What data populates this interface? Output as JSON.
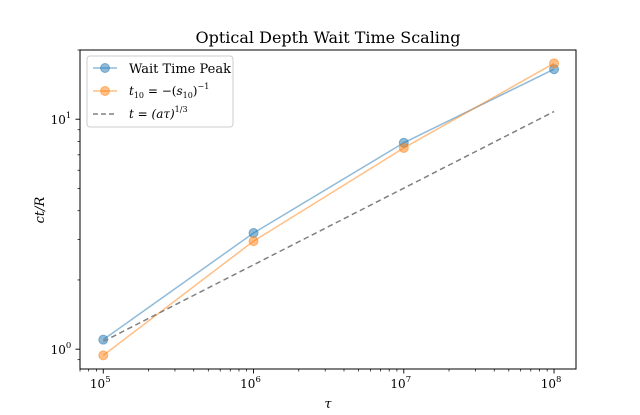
{
  "chart_data": {
    "type": "line",
    "title": "Optical Depth Wait Time Scaling",
    "xlabel": "τ",
    "ylabel": "ct/R",
    "xscale": "log",
    "yscale": "log",
    "xlim": [
      70000,
      140000000
    ],
    "ylim": [
      0.82,
      20
    ],
    "x_ticks": [
      {
        "base": "10",
        "exp": "5",
        "value": 100000
      },
      {
        "base": "10",
        "exp": "6",
        "value": 1000000
      },
      {
        "base": "10",
        "exp": "7",
        "value": 10000000
      },
      {
        "base": "10",
        "exp": "8",
        "value": 100000000
      }
    ],
    "y_ticks": [
      {
        "base": "10",
        "exp": "0",
        "value": 1
      },
      {
        "base": "10",
        "exp": "1",
        "value": 10
      }
    ],
    "legend_position": "top-left",
    "series": [
      {
        "name": "Wait Time Peak",
        "x": [
          100000,
          1000000,
          10000000,
          100000000
        ],
        "y": [
          1.1,
          3.2,
          7.9,
          16.5
        ],
        "color": "#1f77b4",
        "style": "solid-markers"
      },
      {
        "name": "t10 = −(s10)^−1",
        "x": [
          100000,
          1000000,
          10000000,
          100000000
        ],
        "y": [
          0.94,
          2.95,
          7.5,
          17.5
        ],
        "color": "#ff7f0e",
        "style": "solid-markers"
      },
      {
        "name": "t = (aτ)^1/3",
        "x": [
          100000,
          100000000
        ],
        "y": [
          1.08,
          10.8
        ],
        "color": "#808080",
        "style": "dashed"
      }
    ]
  },
  "legend": {
    "peak": "Wait Time Peak",
    "t10_lhs": "t",
    "t10_sub": "10",
    "t10_mid": " = −(",
    "t10_s": "s",
    "t10_sub2": "10",
    "t10_close": ")",
    "t10_exp": "−1",
    "fit_lhs": "t = (aτ)",
    "fit_exp": "1/3"
  }
}
